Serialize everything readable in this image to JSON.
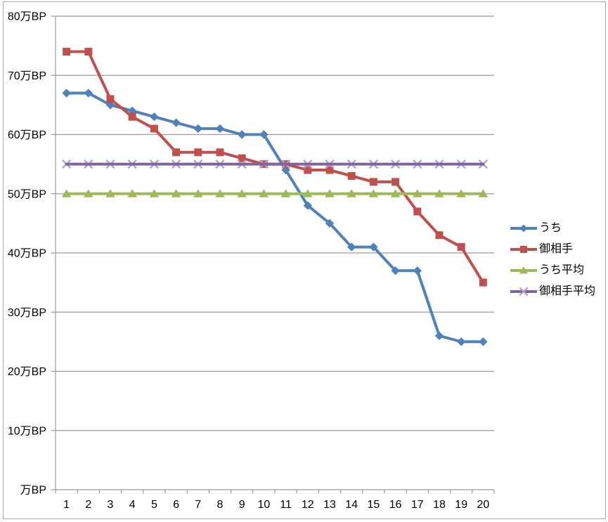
{
  "chart_data": {
    "type": "line",
    "title": "",
    "xlabel": "",
    "ylabel": "",
    "x": [
      1,
      2,
      3,
      4,
      5,
      6,
      7,
      8,
      9,
      10,
      11,
      12,
      13,
      14,
      15,
      16,
      17,
      18,
      19,
      20
    ],
    "ylim": [
      0,
      80
    ],
    "ytick_step": 10,
    "y_unit": "万BP",
    "yticks": [
      {
        "value": 0,
        "label": "万BP"
      },
      {
        "value": 10,
        "label": "10万BP"
      },
      {
        "value": 20,
        "label": "20万BP"
      },
      {
        "value": 30,
        "label": "30万BP"
      },
      {
        "value": 40,
        "label": "40万BP"
      },
      {
        "value": 50,
        "label": "50万BP"
      },
      {
        "value": 60,
        "label": "60万BP"
      },
      {
        "value": 70,
        "label": "70万BP"
      },
      {
        "value": 80,
        "label": "80万BP"
      }
    ],
    "grid": true,
    "legend_position": "right",
    "series": [
      {
        "id": "uchi",
        "name": "うち",
        "color": "#4F81BD",
        "marker": "diamond",
        "marker_color": "#4F81BD",
        "values": [
          67,
          67,
          65,
          64,
          63,
          62,
          61,
          61,
          60,
          60,
          54,
          48,
          45,
          41,
          41,
          37,
          37,
          26,
          25,
          25
        ]
      },
      {
        "id": "oaite",
        "name": "御相手",
        "color": "#C0504D",
        "marker": "square",
        "marker_color": "#C0504D",
        "values": [
          74,
          74,
          66,
          63,
          61,
          57,
          57,
          57,
          56,
          55,
          55,
          54,
          54,
          53,
          52,
          52,
          47,
          43,
          41,
          35
        ]
      },
      {
        "id": "uchi-average",
        "name": "うち平均",
        "color": "#9BBB59",
        "marker": "triangle",
        "marker_color": "#9BBB59",
        "values": [
          50,
          50,
          50,
          50,
          50,
          50,
          50,
          50,
          50,
          50,
          50,
          50,
          50,
          50,
          50,
          50,
          50,
          50,
          50,
          50
        ]
      },
      {
        "id": "oaite-average",
        "name": "御相手平均",
        "color": "#8064A2",
        "marker": "x",
        "marker_color": "#B3A2C7",
        "values": [
          55,
          55,
          55,
          55,
          55,
          55,
          55,
          55,
          55,
          55,
          55,
          55,
          55,
          55,
          55,
          55,
          55,
          55,
          55,
          55
        ]
      }
    ]
  },
  "styles": {
    "background": "#FFFFFF",
    "text_color": "#000000",
    "gridline_color": "#9B9B9B",
    "axis_color": "#9B9B9B",
    "border_color": "#A8A8A8"
  }
}
